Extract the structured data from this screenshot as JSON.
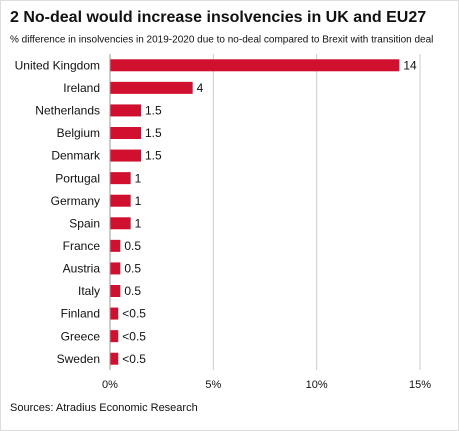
{
  "chart_data": {
    "type": "hbar",
    "title": "2 No-deal would increase insolvencies in UK and EU27",
    "subtitle": "% difference in insolvencies  in 2019-2020 due to no-deal compared to Brexit with transition deal",
    "source": "Sources: Atradius Economic Research",
    "categories": [
      "United Kingdom",
      "Ireland",
      "Netherlands",
      "Belgium",
      "Denmark",
      "Portugal",
      "Germany",
      "Spain",
      "France",
      "Austria",
      "Italy",
      "Finland",
      "Greece",
      "Sweden"
    ],
    "values": [
      14,
      4,
      1.5,
      1.5,
      1.5,
      1,
      1,
      1,
      0.5,
      0.5,
      0.5,
      0.4,
      0.4,
      0.4
    ],
    "value_labels": [
      "14",
      "4",
      "1.5",
      "1.5",
      "1.5",
      "1",
      "1",
      "1",
      "0.5",
      "0.5",
      "0.5",
      "<0.5",
      "<0.5",
      "<0.5"
    ],
    "color": "#d0102e",
    "xlim": [
      0,
      15
    ],
    "xticks": [
      {
        "value": 0,
        "label": "0%"
      },
      {
        "value": 5,
        "label": "5%"
      },
      {
        "value": 10,
        "label": "10%"
      },
      {
        "value": 15,
        "label": "15%"
      }
    ],
    "grid": true
  }
}
